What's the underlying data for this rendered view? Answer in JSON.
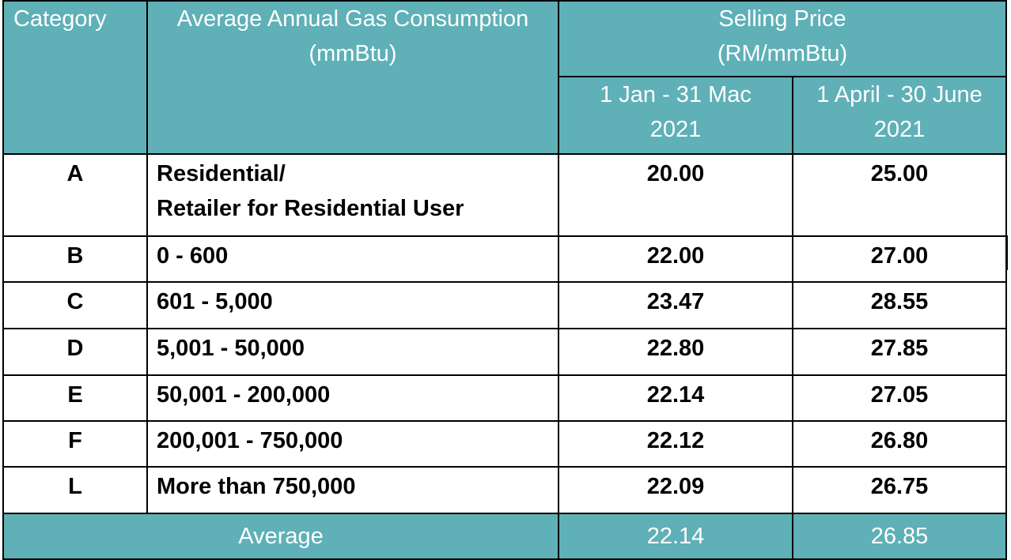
{
  "table": {
    "header": {
      "category": "Category",
      "consumption_line1": "Average Annual Gas Consumption",
      "consumption_line2": "(mmBtu)",
      "price_line1": "Selling Price",
      "price_line2": "(RM/mmBtu)",
      "period1_line1": "1 Jan -  31 Mac",
      "period1_line2": "2021",
      "period2_line1": "1 April - 30 June",
      "period2_line2": "2021"
    },
    "rows": [
      {
        "category": "A",
        "consumption_line1": "Residential/",
        "consumption_line2": "Retailer for Residential User",
        "price1": "20.00",
        "price2": "25.00"
      },
      {
        "category": "B",
        "consumption_line1": "0 - 600",
        "consumption_line2": "",
        "price1": "22.00",
        "price2": "27.00"
      },
      {
        "category": "C",
        "consumption_line1": "601 - 5,000",
        "consumption_line2": "",
        "price1": "23.47",
        "price2": "28.55"
      },
      {
        "category": "D",
        "consumption_line1": "5,001 - 50,000",
        "consumption_line2": "",
        "price1": "22.80",
        "price2": "27.85"
      },
      {
        "category": "E",
        "consumption_line1": "50,001 - 200,000",
        "consumption_line2": "",
        "price1": "22.14",
        "price2": "27.05"
      },
      {
        "category": "F",
        "consumption_line1": "200,001 - 750,000",
        "consumption_line2": "",
        "price1": "22.12",
        "price2": "26.80"
      },
      {
        "category": "L",
        "consumption_line1": "More than 750,000",
        "consumption_line2": "",
        "price1": "22.09",
        "price2": "26.75"
      }
    ],
    "footer": {
      "label": "Average",
      "price1": "22.14",
      "price2": "26.85"
    }
  },
  "colors": {
    "header_bg": "#5fb0b7",
    "header_text": "#ffffff",
    "border": "#000000"
  }
}
